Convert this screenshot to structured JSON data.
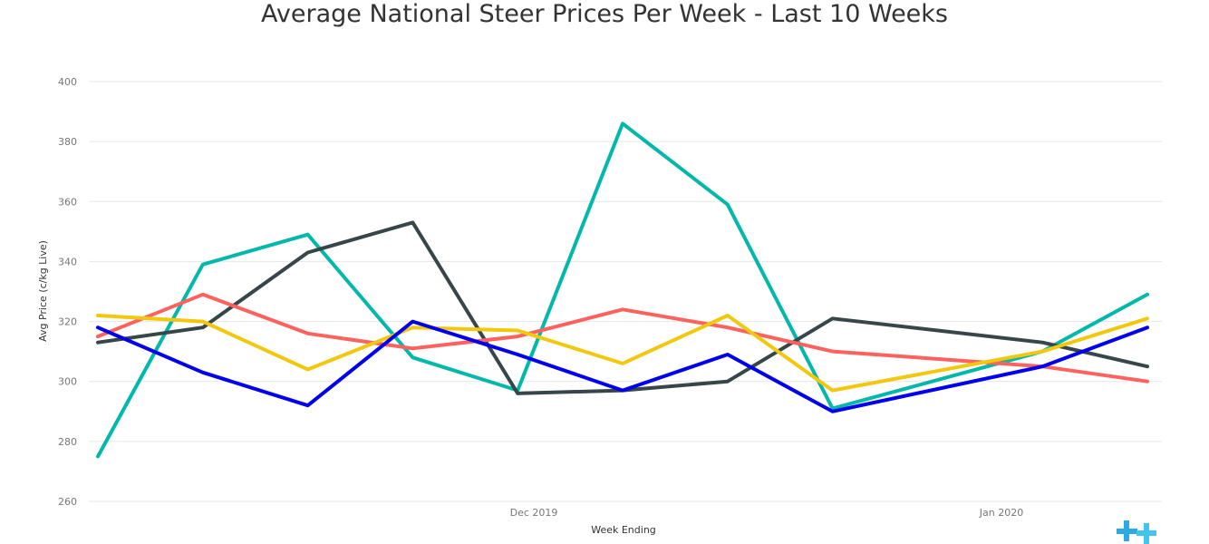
{
  "chart_data": {
    "type": "line",
    "title": "Average National Steer Prices Per Week - Last 10 Weeks",
    "xlabel": "Week Ending",
    "ylabel": "Avg Price (c/kg Live)",
    "ylim": [
      260,
      400
    ],
    "yticks": [
      260,
      280,
      300,
      320,
      340,
      360,
      380,
      400
    ],
    "xtick_labels": [
      "Dec 2019",
      "Jan 2020"
    ],
    "grid": true,
    "legend": false,
    "x": [
      1,
      2,
      3,
      4,
      5,
      6,
      7,
      8,
      9,
      10,
      11
    ],
    "series": [
      {
        "color": "#01b8aa",
        "values": [
          275,
          339,
          349,
          308,
          297,
          386,
          359,
          291,
          null,
          310,
          329
        ]
      },
      {
        "color": "#374649",
        "values": [
          313,
          318,
          343,
          353,
          296,
          297,
          300,
          321,
          null,
          313,
          305
        ]
      },
      {
        "color": "#fd625e",
        "values": [
          315,
          329,
          316,
          311,
          315,
          324,
          318,
          310,
          null,
          305,
          300
        ]
      },
      {
        "color": "#f2c80f",
        "values": [
          322,
          320,
          304,
          318,
          317,
          306,
          322,
          297,
          null,
          310,
          321
        ]
      },
      {
        "color": "#0000ee",
        "values": [
          318,
          303,
          292,
          320,
          309,
          297,
          309,
          290,
          null,
          305,
          318
        ]
      }
    ]
  },
  "logo": {
    "icon": "plus-cross-logo-icon",
    "color": "#2ca9e1"
  }
}
